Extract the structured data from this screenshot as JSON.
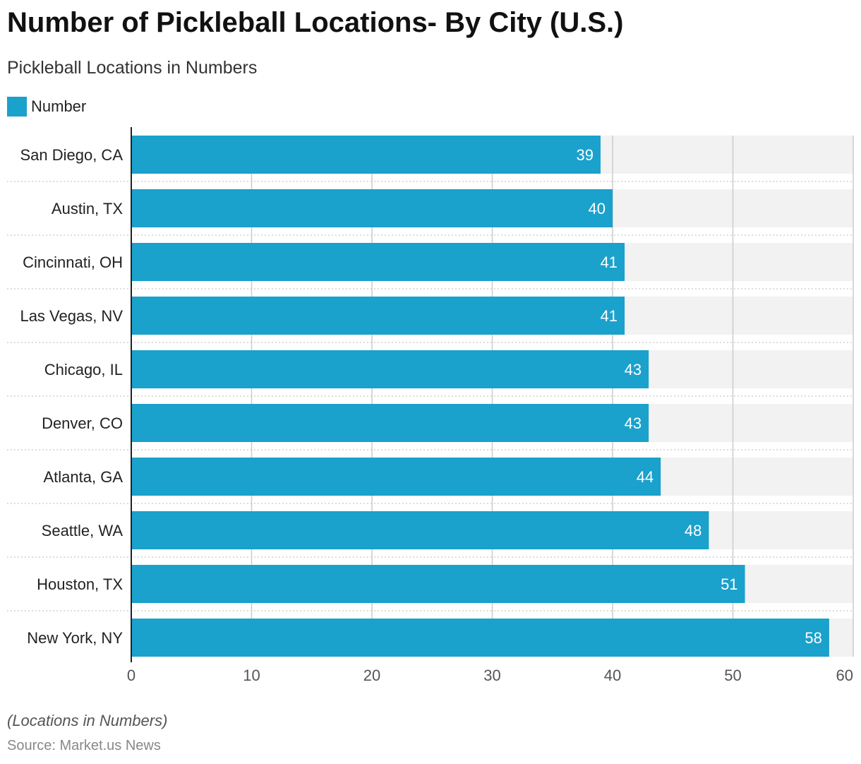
{
  "title": "Number of Pickleball Locations- By City (U.S.)",
  "subtitle": "Pickleball Locations in Numbers",
  "footnote": "(Locations in Numbers)",
  "source": "Source: Market.us News",
  "colors": {
    "bar": "#1aa1cc",
    "track": "#f2f2f2",
    "grid": "#cccccc",
    "bar_label": "#ffffff"
  },
  "chart_data": {
    "type": "bar",
    "orientation": "horizontal",
    "categories": [
      "San Diego, CA",
      "Austin, TX",
      "Cincinnati, OH",
      "Las Vegas, NV",
      "Chicago, IL",
      "Denver, CO",
      "Atlanta, GA",
      "Seattle, WA",
      "Houston, TX",
      "New York, NY"
    ],
    "series": [
      {
        "name": "Number",
        "values": [
          39,
          40,
          41,
          41,
          43,
          43,
          44,
          48,
          51,
          58
        ]
      }
    ],
    "xlim": [
      0,
      60
    ],
    "xticks": [
      0,
      10,
      20,
      30,
      40,
      50,
      60
    ],
    "legend": "top-left",
    "grid": true
  }
}
